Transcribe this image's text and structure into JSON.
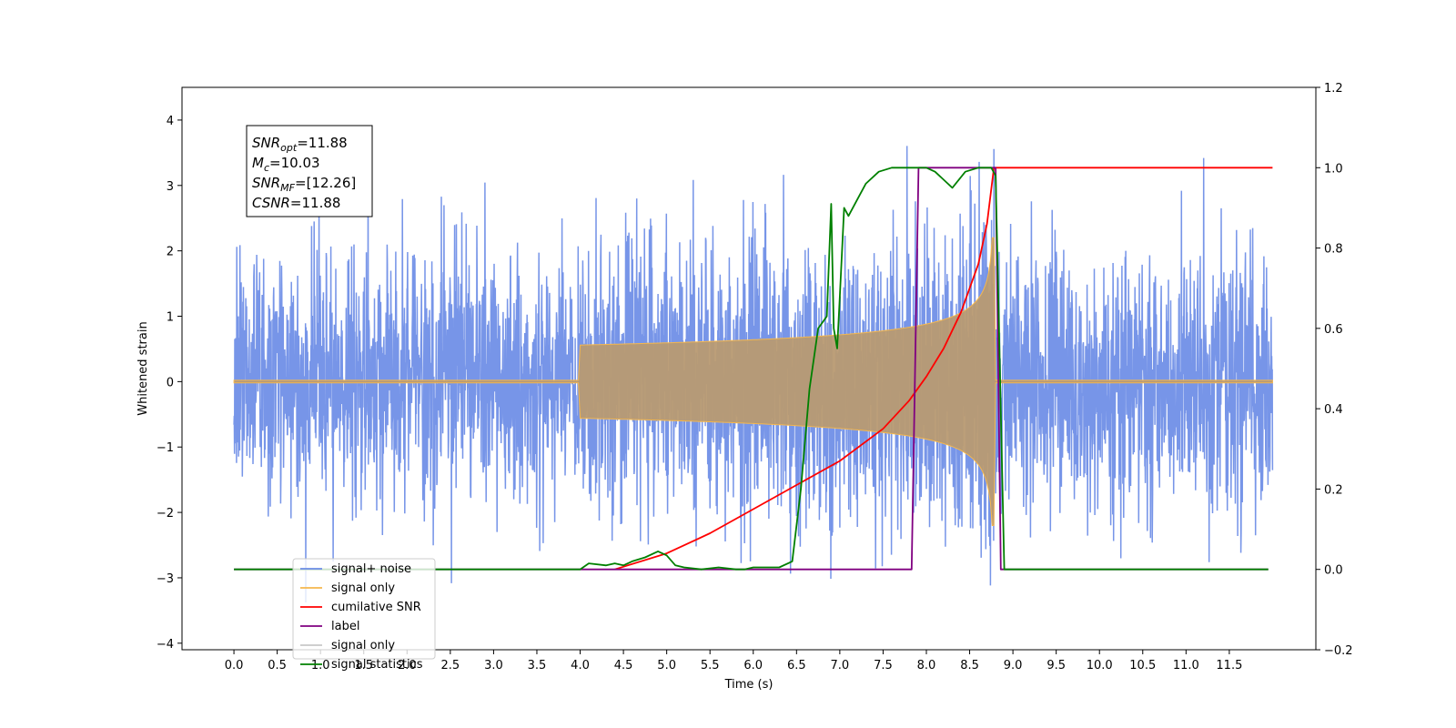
{
  "chart_data": {
    "type": "line",
    "title": "",
    "xlabel": "Time (s)",
    "ylabel": "Whitened strain",
    "ylabel_right": "",
    "xlim": [
      -0.6,
      12.5
    ],
    "ylim": [
      -4.1,
      4.5
    ],
    "ylim_right": [
      -0.2,
      1.2
    ],
    "grid": false,
    "legend_position": "lower-left",
    "x_ticks": [
      "0.0",
      "0.5",
      "1.0",
      "1.5",
      "2.0",
      "2.5",
      "3.0",
      "3.5",
      "4.0",
      "4.5",
      "5.0",
      "5.5",
      "6.0",
      "6.5",
      "7.0",
      "7.5",
      "8.0",
      "8.5",
      "9.0",
      "9.5",
      "10.0",
      "10.5",
      "11.0",
      "11.5"
    ],
    "y_ticks": [
      "4",
      "3",
      "2",
      "1",
      "0",
      "−1",
      "−2",
      "−3",
      "−4"
    ],
    "y_ticks_right": [
      "1.2",
      "1.0",
      "0.8",
      "0.6",
      "0.4",
      "0.2",
      "0.0",
      "−0.2"
    ],
    "annotation": [
      {
        "label": "SNR",
        "sub": "opt",
        "value": "=11.88"
      },
      {
        "label": "M",
        "sub": "c",
        "value": "=10.03"
      },
      {
        "label": "SNR",
        "sub": "MF",
        "value": "=[12.26]"
      },
      {
        "label": "CSNR",
        "sub": "",
        "value": "=11.88"
      }
    ],
    "series": [
      {
        "name": "signal+ noise",
        "color": "#6b8ce6",
        "axis": "left",
        "noise_std": 1.0,
        "x_range": [
          0.0,
          12.0
        ]
      },
      {
        "name": "signal only",
        "color": "#f5b74d",
        "axis": "left",
        "chirp_start": 4.0,
        "chirp_end": 8.78,
        "peak_amplitude": 2.2
      },
      {
        "name": "cumilative SNR",
        "color": "#ff0000",
        "axis": "right",
        "x": [
          4.4,
          5.0,
          5.5,
          6.0,
          6.5,
          7.0,
          7.5,
          7.8,
          8.0,
          8.2,
          8.4,
          8.6,
          8.7,
          8.78,
          9.0,
          10.0,
          11.0,
          12.0
        ],
        "values": [
          0.0,
          0.04,
          0.09,
          0.15,
          0.21,
          0.27,
          0.35,
          0.42,
          0.48,
          0.55,
          0.64,
          0.76,
          0.86,
          1.0,
          1.0,
          1.0,
          1.0,
          1.0
        ]
      },
      {
        "name": "label",
        "color": "#800080",
        "axis": "right",
        "x": [
          0.0,
          7.83,
          7.91,
          8.8,
          8.86,
          11.95
        ],
        "values": [
          0.0,
          0.0,
          1.0,
          1.0,
          0.0,
          0.0
        ]
      },
      {
        "name": "signal only",
        "color": "#c8c8c8",
        "axis": "none",
        "legend_only": true
      },
      {
        "name": "signal statistics",
        "color": "#008000",
        "axis": "right",
        "x": [
          0.0,
          4.0,
          4.1,
          4.3,
          4.4,
          4.5,
          4.6,
          4.75,
          4.9,
          5.0,
          5.1,
          5.2,
          5.4,
          5.6,
          5.8,
          5.9,
          6.0,
          6.3,
          6.45,
          6.55,
          6.65,
          6.75,
          6.85,
          6.9,
          6.93,
          6.97,
          7.0,
          7.05,
          7.1,
          7.2,
          7.3,
          7.45,
          7.6,
          7.8,
          8.0,
          8.1,
          8.2,
          8.3,
          8.45,
          8.6,
          8.75,
          8.8,
          8.9,
          8.95,
          9.0,
          11.95
        ],
        "values": [
          0.0,
          0.0,
          0.015,
          0.01,
          0.015,
          0.01,
          0.02,
          0.03,
          0.045,
          0.035,
          0.01,
          0.005,
          0.0,
          0.005,
          0.0,
          0.0,
          0.005,
          0.005,
          0.02,
          0.2,
          0.45,
          0.6,
          0.63,
          0.91,
          0.6,
          0.55,
          0.68,
          0.9,
          0.88,
          0.92,
          0.96,
          0.99,
          1.0,
          1.0,
          1.0,
          0.99,
          0.97,
          0.95,
          0.99,
          1.0,
          1.0,
          0.98,
          0.0,
          0.0,
          0.0,
          0.0
        ]
      }
    ]
  }
}
